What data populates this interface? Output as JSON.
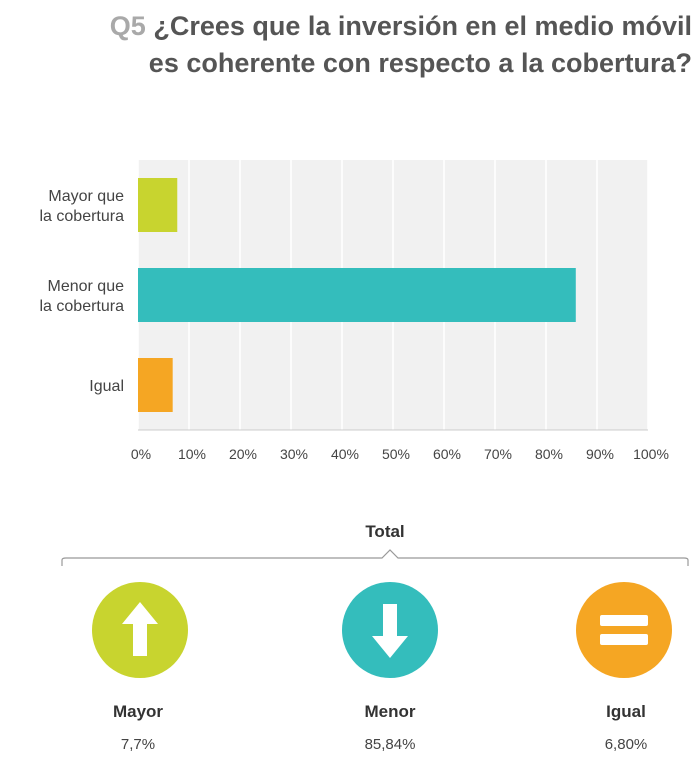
{
  "title": {
    "qnum": "Q5",
    "line1": "¿Crees que la inversión en el medio móvil",
    "line2": "es coherente con respecto a la cobertura?"
  },
  "chart_data": {
    "type": "bar",
    "orientation": "horizontal",
    "categories": [
      [
        "Mayor que",
        "la cobertura"
      ],
      [
        "Menor que",
        "la cobertura"
      ],
      [
        "Igual"
      ]
    ],
    "values": [
      7.7,
      85.84,
      6.8
    ],
    "colors": [
      "#c8d42f",
      "#34bdbc",
      "#f5a623"
    ],
    "xlim": [
      0,
      100
    ],
    "xticks": [
      "0%",
      "10%",
      "20%",
      "30%",
      "40%",
      "50%",
      "60%",
      "70%",
      "80%",
      "90%",
      "100%"
    ],
    "grid": true,
    "background": "#f1f1f1"
  },
  "summary": {
    "heading": "Total",
    "items": [
      {
        "label": "Mayor",
        "value": "7,7%",
        "icon": "arrow-up-icon",
        "color": "#c8d42f"
      },
      {
        "label": "Menor",
        "value": "85,84%",
        "icon": "arrow-down-icon",
        "color": "#34bdbc"
      },
      {
        "label": "Igual",
        "value": "6,80%",
        "icon": "equals-icon",
        "color": "#f5a623"
      }
    ]
  }
}
